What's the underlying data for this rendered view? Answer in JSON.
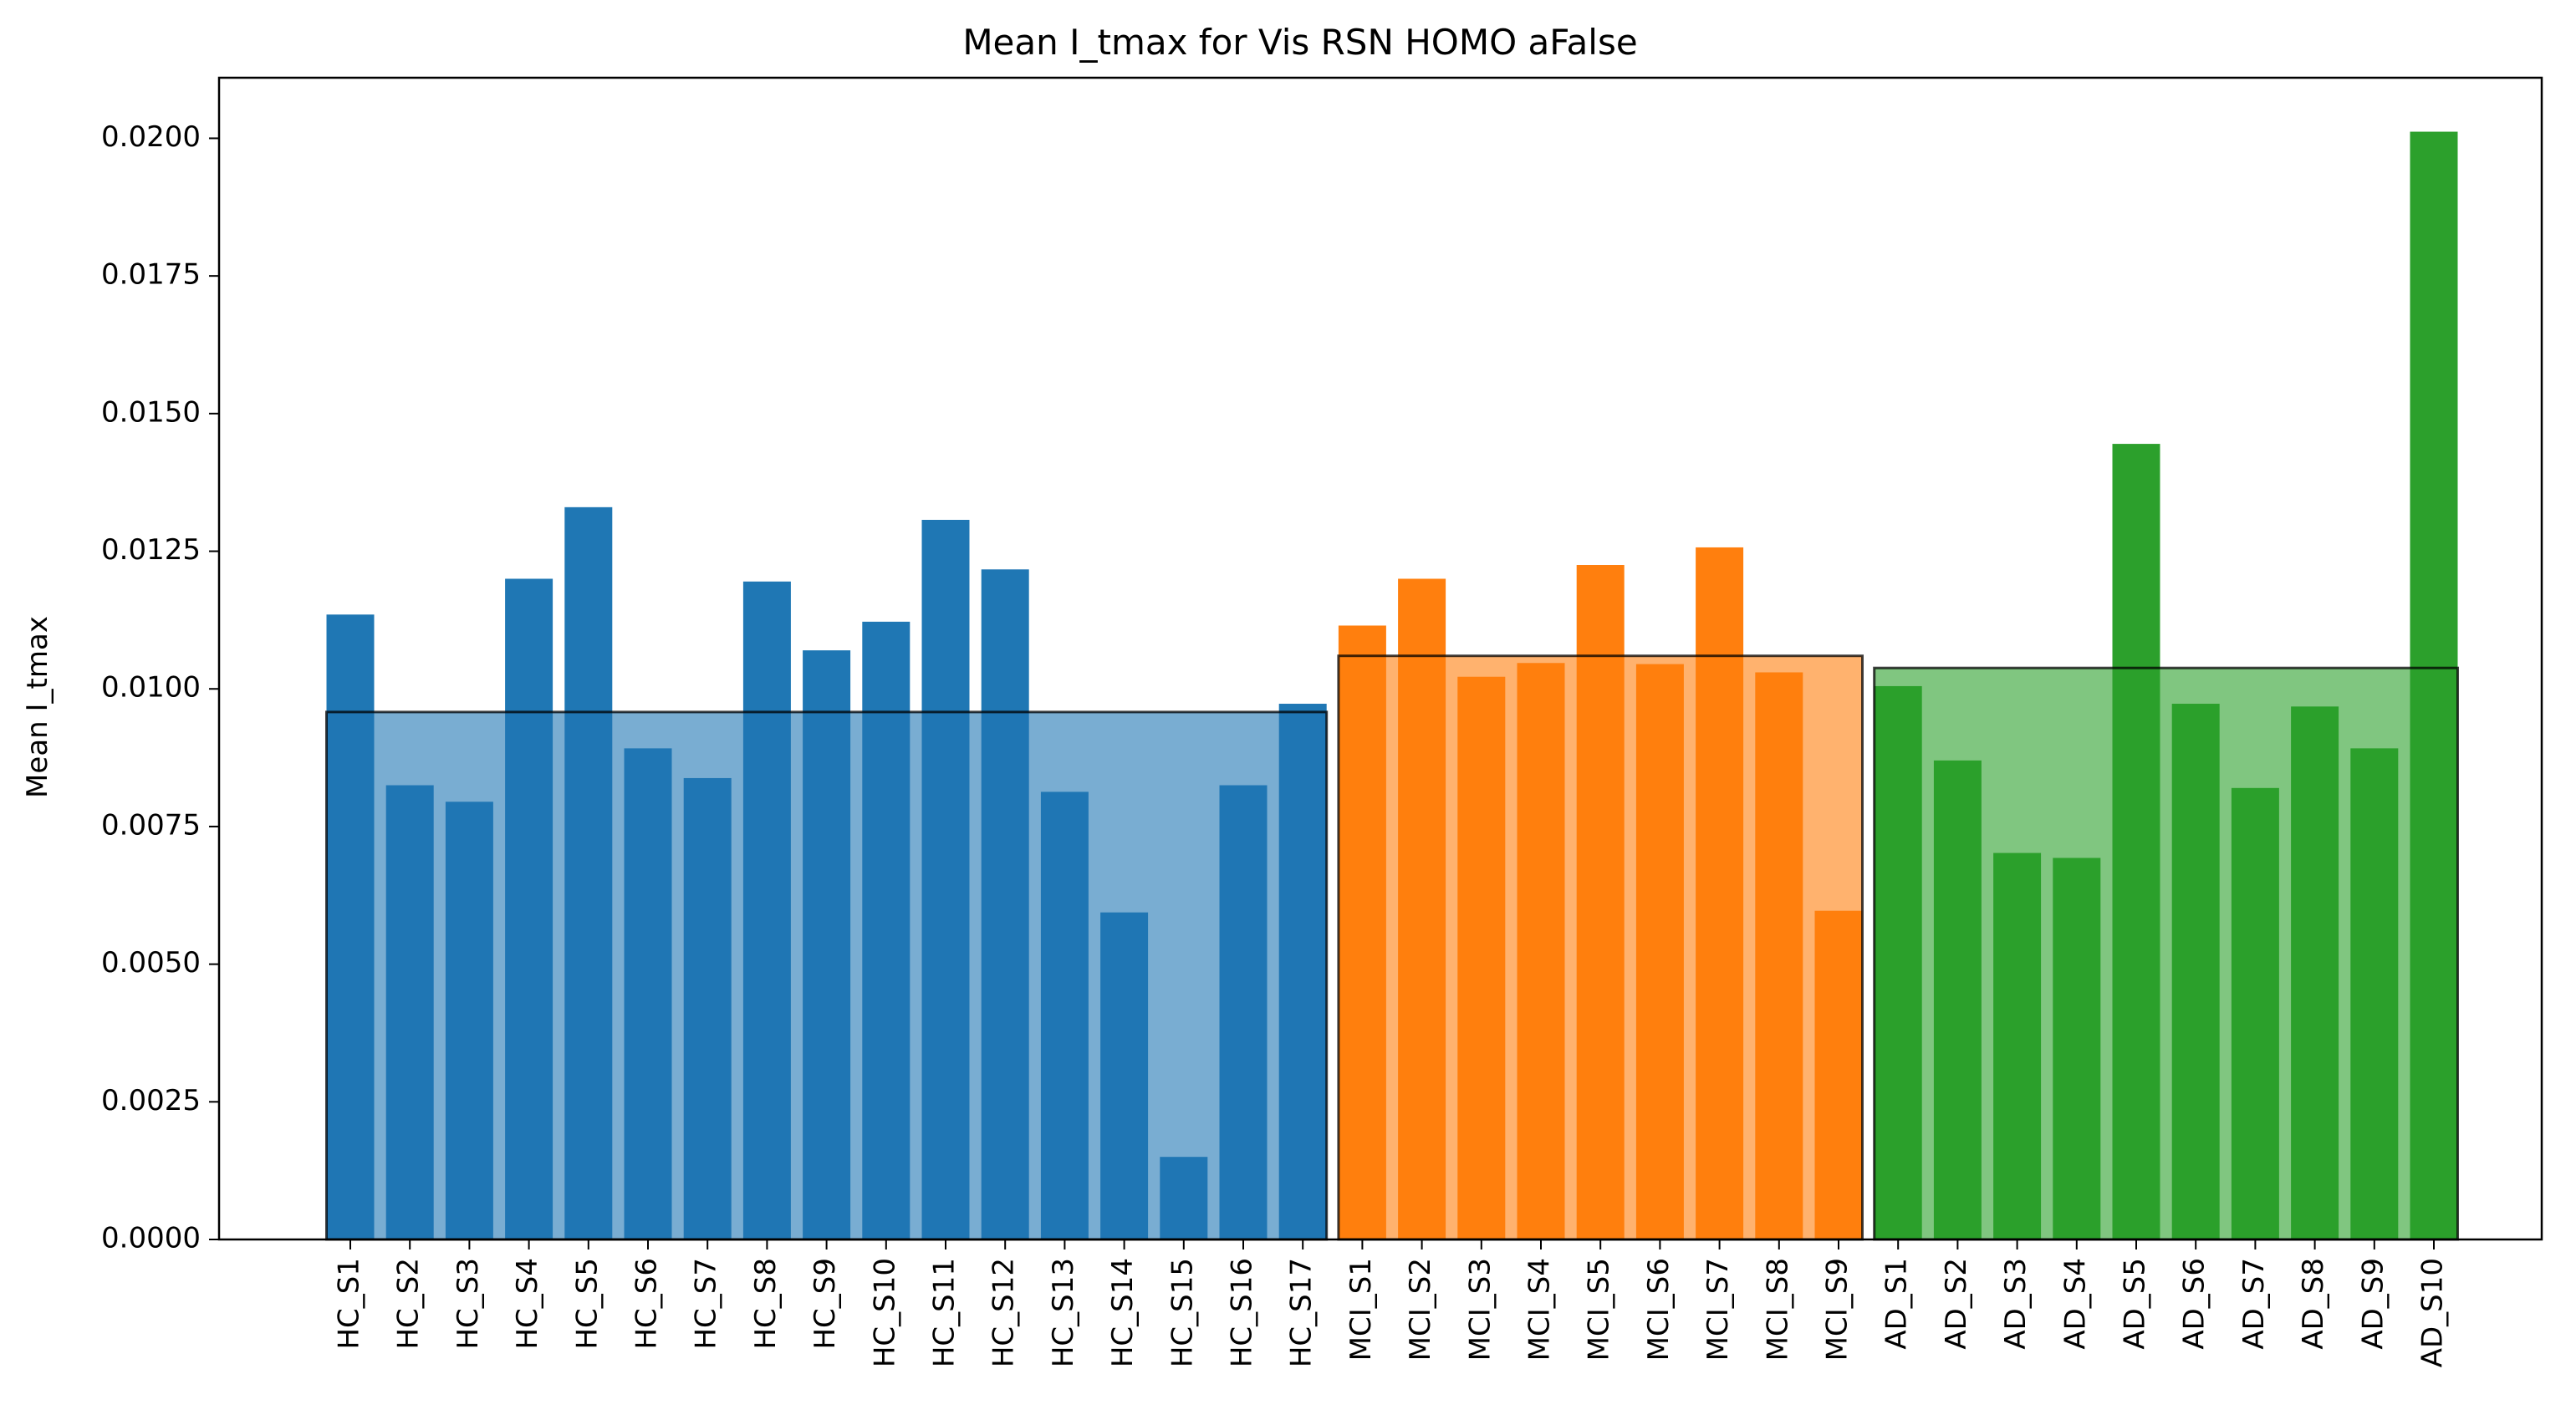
{
  "chart_data": {
    "type": "bar",
    "title": "Mean I_tmax for Vis RSN HOMO aFalse",
    "xlabel": "",
    "ylabel": "Mean I_tmax",
    "ylim": [
      0,
      0.0211
    ],
    "yticks": [
      "0.0000",
      "0.0025",
      "0.0050",
      "0.0075",
      "0.0100",
      "0.0125",
      "0.0150",
      "0.0175",
      "0.0200"
    ],
    "ytick_values": [
      0,
      0.0025,
      0.005,
      0.0075,
      0.01,
      0.0125,
      0.015,
      0.0175,
      0.02
    ],
    "grid": false,
    "legend": "none",
    "groups": [
      {
        "color": "#1f77b4",
        "mean": 0.00958,
        "categories": [
          "HC_S1",
          "HC_S2",
          "HC_S3",
          "HC_S4",
          "HC_S5",
          "HC_S6",
          "HC_S7",
          "HC_S8",
          "HC_S9",
          "HC_S10",
          "HC_S11",
          "HC_S12",
          "HC_S13",
          "HC_S14",
          "HC_S15",
          "HC_S16",
          "HC_S17"
        ],
        "values": [
          0.01135,
          0.00825,
          0.00795,
          0.012,
          0.0133,
          0.00892,
          0.00838,
          0.01195,
          0.0107,
          0.01122,
          0.01307,
          0.01217,
          0.00813,
          0.00594,
          0.0015,
          0.00825,
          0.00973
        ]
      },
      {
        "color": "#ff7f0e",
        "mean": 0.0106,
        "categories": [
          "MCI_S1",
          "MCI_S2",
          "MCI_S3",
          "MCI_S4",
          "MCI_S5",
          "MCI_S6",
          "MCI_S7",
          "MCI_S8",
          "MCI_S9"
        ],
        "values": [
          0.01115,
          0.012,
          0.01022,
          0.01047,
          0.01225,
          0.01045,
          0.01257,
          0.0103,
          0.00597
        ]
      },
      {
        "color": "#2ca02c",
        "mean": 0.01038,
        "categories": [
          "AD_S1",
          "AD_S2",
          "AD_S3",
          "AD_S4",
          "AD_S5",
          "AD_S6",
          "AD_S7",
          "AD_S8",
          "AD_S9",
          "AD_S10"
        ],
        "values": [
          0.01005,
          0.0087,
          0.00702,
          0.00693,
          0.01445,
          0.00973,
          0.0082,
          0.00968,
          0.00892,
          0.02012
        ]
      }
    ]
  }
}
